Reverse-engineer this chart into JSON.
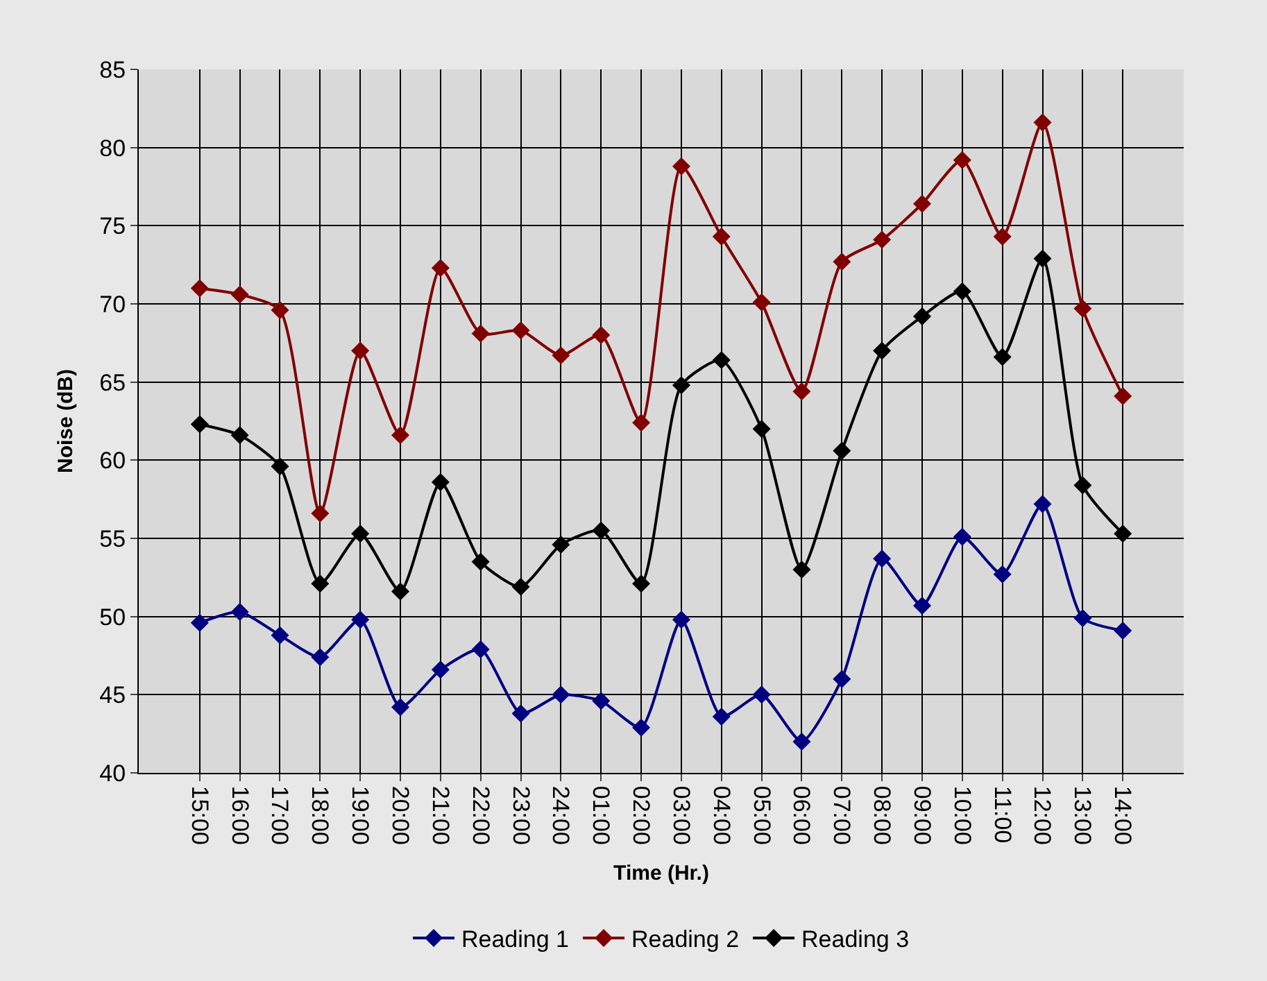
{
  "chart_data": {
    "type": "line",
    "xlabel": "Time (Hr.)",
    "ylabel": "Noise (dB)",
    "categories": [
      "15:00",
      "16:00",
      "17:00",
      "18:00",
      "19:00",
      "20:00",
      "21:00",
      "22:00",
      "23:00",
      "24:00",
      "01:00",
      "02:00",
      "03:00",
      "04:00",
      "05:00",
      "06:00",
      "07:00",
      "08:00",
      "09:00",
      "10:00",
      "11:00",
      "12:00",
      "13:00",
      "14:00"
    ],
    "series": [
      {
        "name": "Reading 1",
        "color": "#000080",
        "values": [
          49.6,
          50.3,
          48.8,
          47.4,
          49.8,
          44.2,
          46.6,
          47.9,
          43.8,
          45,
          44.6,
          42.9,
          49.8,
          43.6,
          45,
          42,
          46,
          53.7,
          50.7,
          55.1,
          52.7,
          57.2,
          49.9,
          49.1
        ]
      },
      {
        "name": "Reading 2",
        "color": "#800000",
        "values": [
          71,
          70.6,
          69.6,
          56.6,
          67,
          61.6,
          72.3,
          68.1,
          68.3,
          66.7,
          68,
          62.4,
          78.8,
          74.3,
          70.1,
          64.4,
          72.7,
          74.1,
          76.4,
          79.2,
          74.3,
          81.6,
          69.7,
          64.1
        ]
      },
      {
        "name": "Reading 3",
        "color": "#000000",
        "values": [
          62.3,
          61.6,
          59.6,
          52.1,
          55.3,
          51.6,
          58.6,
          53.5,
          51.9,
          54.6,
          55.5,
          52.1,
          64.8,
          66.4,
          62,
          53,
          60.6,
          67,
          69.2,
          70.8,
          66.6,
          72.9,
          58.4,
          55.3
        ]
      }
    ],
    "ylim": [
      40,
      85
    ],
    "yticks": [
      40,
      45,
      50,
      55,
      60,
      65,
      70,
      75,
      80,
      85
    ],
    "grid": true,
    "legend": "bottom",
    "marker": "diamond",
    "line_style": "solid"
  }
}
